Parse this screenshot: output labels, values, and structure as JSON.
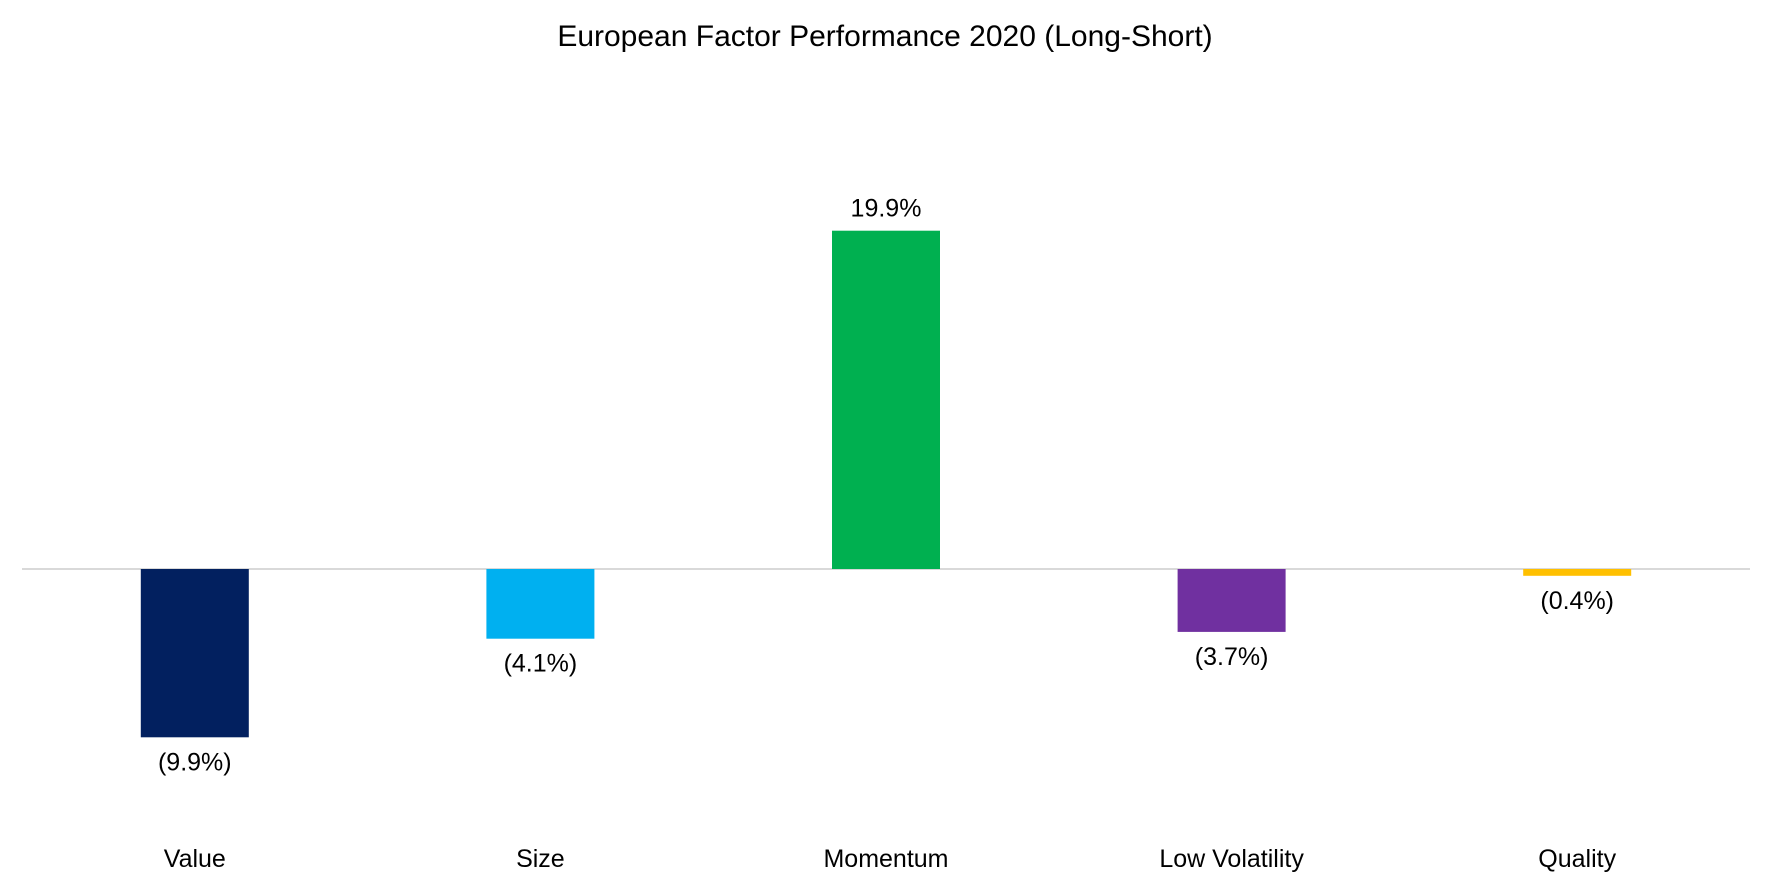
{
  "chart_data": {
    "type": "bar",
    "title": "European Factor Performance 2020 (Long-Short)",
    "xlabel": "",
    "ylabel": "",
    "categories": [
      "Value",
      "Size",
      "Momentum",
      "Low Volatility",
      "Quality"
    ],
    "values": [
      -9.9,
      -4.1,
      19.9,
      -3.7,
      -0.4
    ],
    "data_labels": [
      "(9.9%)",
      "(4.1%)",
      "19.9%",
      "(3.7%)",
      "(0.4%)"
    ],
    "colors": [
      "#02205F",
      "#00B0F0",
      "#00B050",
      "#7030A0",
      "#FFC000"
    ],
    "value_unit": "%",
    "ylim": [
      -15,
      25
    ],
    "grid": false,
    "legend": "none",
    "zero_line_color": "#D9D9D9"
  }
}
